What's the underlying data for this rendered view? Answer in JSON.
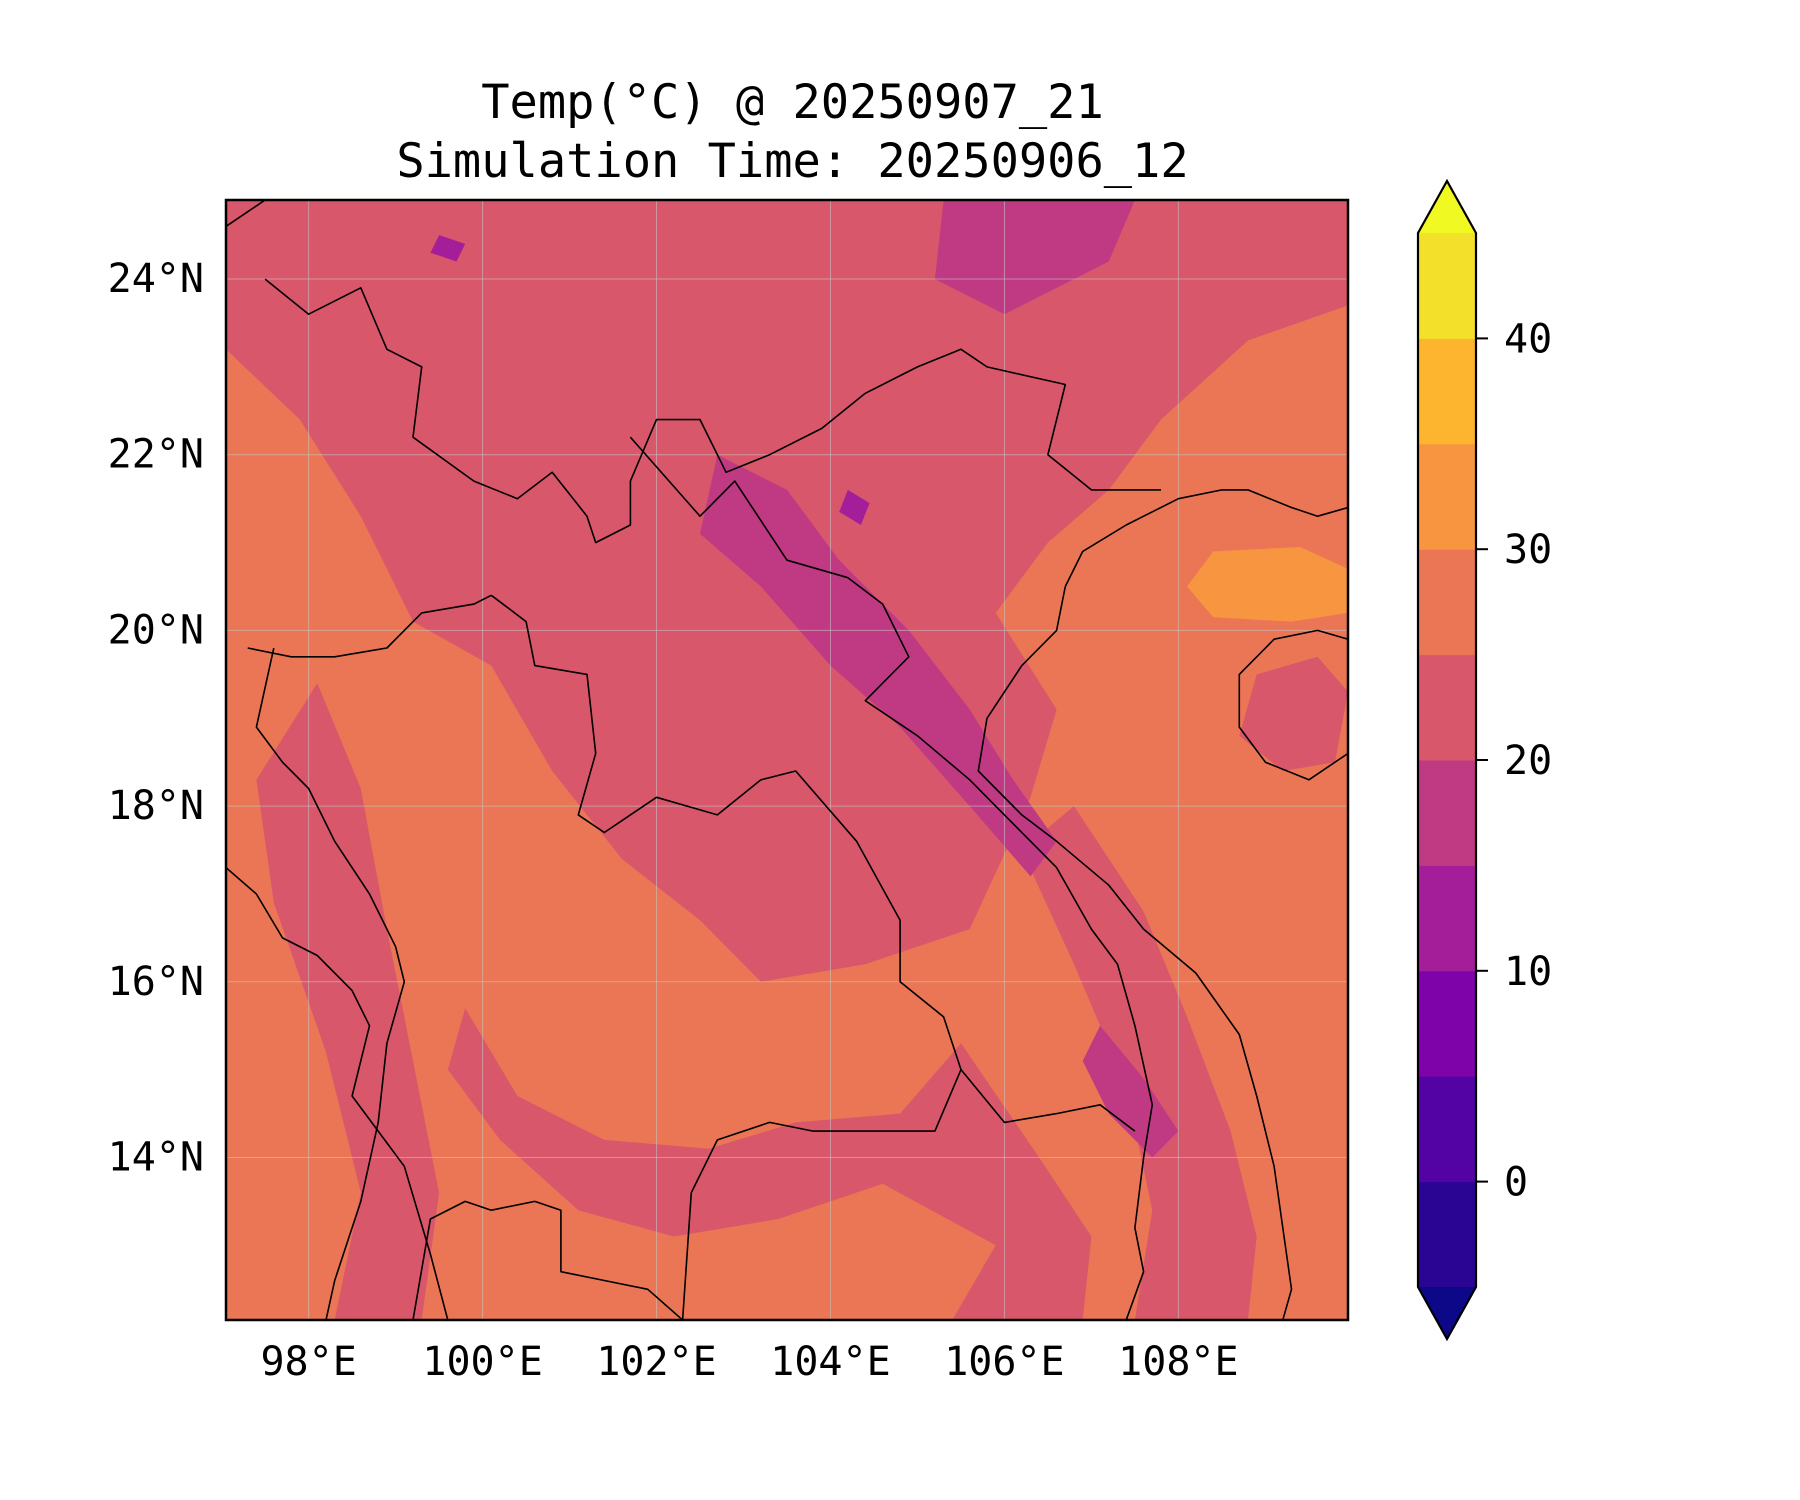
{
  "title": [
    "Temp(°C) @ 20250907_21",
    "Simulation Time: 20250906_12"
  ],
  "colors": {
    "background": "#ffffff",
    "frame": "#000000",
    "coastline": "#000000",
    "gridline": "#c8c8c8"
  },
  "map": {
    "variable": "Temp(°C)",
    "valid_time": "20250907_21",
    "simulation_time": "20250906_12",
    "projection": "PlateCarree",
    "lon_range": [
      97.05,
      109.95
    ],
    "lat_range": [
      12.15,
      24.9
    ],
    "lon_ticks": [
      98,
      100,
      102,
      104,
      106,
      108
    ],
    "lon_tick_labels": [
      "98°E",
      "100°E",
      "102°E",
      "104°E",
      "106°E",
      "108°E"
    ],
    "lat_ticks": [
      14,
      16,
      18,
      20,
      22,
      24
    ],
    "lat_tick_labels": [
      "14°N",
      "16°N",
      "18°N",
      "20°N",
      "22°N",
      "24°N"
    ],
    "gridlines": true,
    "coastlines_and_borders": true
  },
  "colorbar": {
    "orientation": "vertical",
    "placement": "right",
    "extend": "both",
    "levels": [
      -5,
      0,
      5,
      10,
      15,
      20,
      25,
      30,
      35,
      40,
      45
    ],
    "tick_values": [
      0,
      10,
      20,
      30,
      40
    ],
    "tick_labels": [
      "0",
      "10",
      "20",
      "30",
      "40"
    ],
    "under_color": "#0d0887",
    "over_color": "#f0f921",
    "band_colors": [
      "#2a0593",
      "#5302a3",
      "#7e03a8",
      "#a41e9a",
      "#c03a83",
      "#d8576b",
      "#eb7655",
      "#f89540",
      "#fdb42f",
      "#f3e02a"
    ]
  },
  "regions": {
    "background_level_color": "#eb7655",
    "regions": [
      {
        "name": "cool-north",
        "level_color": "#c03a83",
        "points": [
          [
            97.3,
            24.9
          ],
          [
            105.3,
            24.9
          ],
          [
            105.8,
            23.3
          ],
          [
            103.9,
            22.6
          ],
          [
            102.4,
            22.2
          ],
          [
            100.8,
            21.4
          ],
          [
            99.6,
            21.9
          ],
          [
            98.8,
            22.2
          ],
          [
            98.2,
            23.5
          ],
          [
            97.3,
            23.8
          ]
        ]
      },
      {
        "name": "north-mid",
        "level_color": "#d8576b",
        "points": [
          [
            97.05,
            23.2
          ],
          [
            97.9,
            22.4
          ],
          [
            98.6,
            21.3
          ],
          [
            99.2,
            20.1
          ],
          [
            100.1,
            19.6
          ],
          [
            100.8,
            18.4
          ],
          [
            101.6,
            17.4
          ],
          [
            102.5,
            16.7
          ],
          [
            103.2,
            16.0
          ],
          [
            104.4,
            16.2
          ],
          [
            105.6,
            16.6
          ],
          [
            106.3,
            18.1
          ],
          [
            106.6,
            19.1
          ],
          [
            105.9,
            20.2
          ],
          [
            106.5,
            21.0
          ],
          [
            107.2,
            21.6
          ],
          [
            107.8,
            22.4
          ],
          [
            108.8,
            23.3
          ],
          [
            109.95,
            23.7
          ],
          [
            109.95,
            24.9
          ],
          [
            97.05,
            24.9
          ]
        ]
      },
      {
        "name": "west-strip",
        "level_color": "#d8576b",
        "points": [
          [
            98.1,
            19.4
          ],
          [
            98.6,
            18.2
          ],
          [
            98.9,
            16.6
          ],
          [
            99.2,
            15.1
          ],
          [
            99.5,
            13.6
          ],
          [
            99.3,
            12.15
          ],
          [
            98.3,
            12.15
          ],
          [
            98.6,
            13.6
          ],
          [
            98.2,
            15.2
          ],
          [
            97.6,
            16.9
          ],
          [
            97.4,
            18.3
          ]
        ]
      },
      {
        "name": "mid-belt",
        "level_color": "#d8576b",
        "points": [
          [
            99.8,
            15.7
          ],
          [
            100.4,
            14.7
          ],
          [
            101.4,
            14.2
          ],
          [
            102.6,
            14.1
          ],
          [
            103.6,
            14.4
          ],
          [
            104.8,
            14.5
          ],
          [
            105.5,
            15.3
          ],
          [
            106.4,
            14.0
          ],
          [
            107.0,
            13.1
          ],
          [
            106.9,
            12.15
          ],
          [
            105.4,
            12.15
          ],
          [
            105.9,
            13.0
          ],
          [
            104.6,
            13.7
          ],
          [
            103.4,
            13.3
          ],
          [
            102.2,
            13.1
          ],
          [
            101.1,
            13.4
          ],
          [
            100.2,
            14.2
          ],
          [
            99.6,
            15.0
          ]
        ]
      },
      {
        "name": "annam-range",
        "level_color": "#d8576b",
        "points": [
          [
            106.8,
            18.0
          ],
          [
            107.6,
            16.8
          ],
          [
            108.1,
            15.6
          ],
          [
            108.6,
            14.3
          ],
          [
            108.9,
            13.1
          ],
          [
            108.8,
            12.15
          ],
          [
            107.5,
            12.15
          ],
          [
            107.7,
            13.4
          ],
          [
            107.4,
            14.8
          ],
          [
            106.8,
            16.2
          ],
          [
            106.2,
            17.5
          ]
        ]
      },
      {
        "name": "cool-laos-ridge",
        "level_color": "#c03a83",
        "points": [
          [
            102.7,
            22.0
          ],
          [
            103.5,
            21.6
          ],
          [
            104.1,
            20.8
          ],
          [
            104.9,
            20.0
          ],
          [
            105.6,
            19.1
          ],
          [
            106.1,
            18.3
          ],
          [
            106.6,
            17.6
          ],
          [
            106.3,
            17.2
          ],
          [
            105.6,
            18.0
          ],
          [
            104.8,
            18.9
          ],
          [
            104.0,
            19.6
          ],
          [
            103.2,
            20.5
          ],
          [
            102.5,
            21.1
          ]
        ]
      },
      {
        "name": "cool-annam",
        "level_color": "#c03a83",
        "points": [
          [
            107.1,
            15.5
          ],
          [
            107.6,
            14.9
          ],
          [
            108.0,
            14.3
          ],
          [
            107.7,
            14.0
          ],
          [
            107.2,
            14.5
          ],
          [
            106.9,
            15.1
          ]
        ]
      },
      {
        "name": "cool-northeast",
        "level_color": "#c03a83",
        "points": [
          [
            105.3,
            24.9
          ],
          [
            107.5,
            24.9
          ],
          [
            107.2,
            24.2
          ],
          [
            106.0,
            23.6
          ],
          [
            105.2,
            24.0
          ]
        ]
      },
      {
        "name": "warm-gulf",
        "level_color": "#f89540",
        "points": [
          [
            108.4,
            20.9
          ],
          [
            109.4,
            20.95
          ],
          [
            109.95,
            20.7
          ],
          [
            109.95,
            20.2
          ],
          [
            109.3,
            20.1
          ],
          [
            108.4,
            20.15
          ],
          [
            108.1,
            20.5
          ]
        ]
      },
      {
        "name": "hainan-interior",
        "level_color": "#d8576b",
        "points": [
          [
            108.9,
            19.5
          ],
          [
            109.6,
            19.7
          ],
          [
            109.95,
            19.3
          ],
          [
            109.8,
            18.5
          ],
          [
            109.2,
            18.4
          ],
          [
            108.7,
            18.8
          ]
        ]
      },
      {
        "name": "dark-spot-north",
        "level_color": "#a41e9a",
        "points": [
          [
            99.5,
            24.5
          ],
          [
            99.8,
            24.4
          ],
          [
            99.7,
            24.2
          ],
          [
            99.4,
            24.3
          ]
        ]
      },
      {
        "name": "dark-spot-laos",
        "level_color": "#a41e9a",
        "points": [
          [
            104.2,
            21.6
          ],
          [
            104.45,
            21.45
          ],
          [
            104.35,
            21.2
          ],
          [
            104.1,
            21.35
          ]
        ]
      }
    ]
  },
  "coastline": [
    [
      106.7,
      20.5
    ],
    [
      106.6,
      20.0
    ],
    [
      106.2,
      19.6
    ],
    [
      105.8,
      19.0
    ],
    [
      105.7,
      18.4
    ],
    [
      106.2,
      17.9
    ],
    [
      106.6,
      17.6
    ],
    [
      107.2,
      17.1
    ],
    [
      107.6,
      16.6
    ],
    [
      108.2,
      16.1
    ],
    [
      108.7,
      15.4
    ],
    [
      108.9,
      14.7
    ],
    [
      109.1,
      13.9
    ],
    [
      109.2,
      13.2
    ],
    [
      109.3,
      12.5
    ],
    [
      109.2,
      12.15
    ]
  ],
  "coastline_north": [
    [
      106.7,
      20.5
    ],
    [
      106.9,
      20.9
    ],
    [
      107.4,
      21.2
    ],
    [
      108.0,
      21.5
    ],
    [
      108.5,
      21.6
    ],
    [
      108.8,
      21.6
    ],
    [
      109.3,
      21.4
    ],
    [
      109.6,
      21.3
    ],
    [
      109.95,
      21.4
    ]
  ],
  "gulf_of_thailand_coast": [
    [
      99.2,
      12.15
    ],
    [
      99.4,
      13.3
    ],
    [
      99.8,
      13.5
    ],
    [
      100.1,
      13.4
    ],
    [
      100.6,
      13.5
    ],
    [
      100.9,
      13.4
    ],
    [
      100.9,
      12.7
    ],
    [
      101.4,
      12.6
    ],
    [
      101.9,
      12.5
    ],
    [
      102.3,
      12.15
    ]
  ],
  "hainan_outline": [
    [
      108.7,
      19.5
    ],
    [
      109.1,
      19.9
    ],
    [
      109.6,
      20.0
    ],
    [
      109.95,
      19.9
    ],
    [
      109.95,
      18.6
    ],
    [
      109.5,
      18.3
    ],
    [
      109.0,
      18.5
    ],
    [
      108.7,
      18.9
    ]
  ],
  "borders": [
    [
      [
        97.05,
        24.6
      ],
      [
        97.5,
        24.9
      ]
    ],
    [
      [
        97.5,
        24.0
      ],
      [
        98.0,
        23.6
      ],
      [
        98.6,
        23.9
      ],
      [
        98.9,
        23.2
      ],
      [
        99.3,
        23.0
      ],
      [
        99.2,
        22.2
      ],
      [
        99.9,
        21.7
      ],
      [
        100.4,
        21.5
      ],
      [
        100.8,
        21.8
      ],
      [
        101.2,
        21.3
      ],
      [
        101.3,
        21.0
      ],
      [
        101.7,
        21.2
      ],
      [
        101.7,
        21.7
      ],
      [
        102.0,
        22.4
      ],
      [
        102.5,
        22.4
      ],
      [
        102.8,
        21.8
      ],
      [
        103.3,
        22.0
      ],
      [
        103.9,
        22.3
      ],
      [
        104.4,
        22.7
      ],
      [
        105.0,
        23.0
      ],
      [
        105.5,
        23.2
      ],
      [
        105.8,
        23.0
      ],
      [
        106.7,
        22.8
      ],
      [
        106.5,
        22.0
      ],
      [
        107.0,
        21.6
      ],
      [
        107.8,
        21.6
      ]
    ],
    [
      [
        100.1,
        20.4
      ],
      [
        100.5,
        20.1
      ],
      [
        100.6,
        19.6
      ],
      [
        101.2,
        19.5
      ],
      [
        101.3,
        18.6
      ],
      [
        101.1,
        17.9
      ],
      [
        101.4,
        17.7
      ],
      [
        102.0,
        18.1
      ],
      [
        102.7,
        17.9
      ],
      [
        103.2,
        18.3
      ],
      [
        103.6,
        18.4
      ],
      [
        104.3,
        17.6
      ],
      [
        104.8,
        16.7
      ],
      [
        104.8,
        16.0
      ],
      [
        105.3,
        15.6
      ],
      [
        105.5,
        15.0
      ],
      [
        105.2,
        14.3
      ],
      [
        104.4,
        14.3
      ],
      [
        103.8,
        14.3
      ],
      [
        103.3,
        14.4
      ],
      [
        102.7,
        14.2
      ],
      [
        102.4,
        13.6
      ],
      [
        102.3,
        12.15
      ]
    ],
    [
      [
        101.7,
        22.2
      ],
      [
        102.5,
        21.3
      ],
      [
        102.9,
        21.7
      ],
      [
        103.5,
        20.8
      ],
      [
        104.2,
        20.6
      ],
      [
        104.6,
        20.3
      ],
      [
        104.9,
        19.7
      ],
      [
        104.4,
        19.2
      ],
      [
        105.0,
        18.8
      ],
      [
        105.6,
        18.3
      ],
      [
        106.0,
        17.9
      ],
      [
        106.6,
        17.3
      ],
      [
        107.0,
        16.6
      ],
      [
        107.3,
        16.2
      ],
      [
        107.5,
        15.5
      ],
      [
        107.7,
        14.6
      ],
      [
        107.6,
        14.0
      ],
      [
        107.5,
        13.2
      ],
      [
        107.6,
        12.7
      ],
      [
        107.4,
        12.15
      ]
    ],
    [
      [
        105.5,
        15.0
      ],
      [
        106.0,
        14.4
      ],
      [
        106.6,
        14.5
      ],
      [
        107.1,
        14.6
      ],
      [
        107.5,
        14.3
      ]
    ],
    [
      [
        97.3,
        19.8
      ],
      [
        97.8,
        19.7
      ],
      [
        98.3,
        19.7
      ],
      [
        98.9,
        19.8
      ],
      [
        99.3,
        20.2
      ],
      [
        99.9,
        20.3
      ],
      [
        100.1,
        20.4
      ]
    ],
    [
      [
        97.05,
        17.3
      ],
      [
        97.4,
        17.0
      ],
      [
        97.7,
        16.5
      ],
      [
        98.1,
        16.3
      ],
      [
        98.5,
        15.9
      ],
      [
        98.7,
        15.5
      ],
      [
        98.5,
        14.7
      ],
      [
        99.1,
        13.9
      ],
      [
        99.4,
        12.9
      ],
      [
        99.6,
        12.15
      ]
    ],
    [
      [
        97.6,
        19.8
      ],
      [
        97.4,
        18.9
      ],
      [
        97.7,
        18.5
      ],
      [
        98.0,
        18.2
      ],
      [
        98.3,
        17.6
      ],
      [
        98.7,
        17.0
      ],
      [
        99.0,
        16.4
      ],
      [
        99.1,
        16.0
      ],
      [
        98.9,
        15.3
      ],
      [
        98.8,
        14.4
      ],
      [
        98.6,
        13.5
      ],
      [
        98.3,
        12.6
      ],
      [
        98.2,
        12.15
      ]
    ]
  ]
}
